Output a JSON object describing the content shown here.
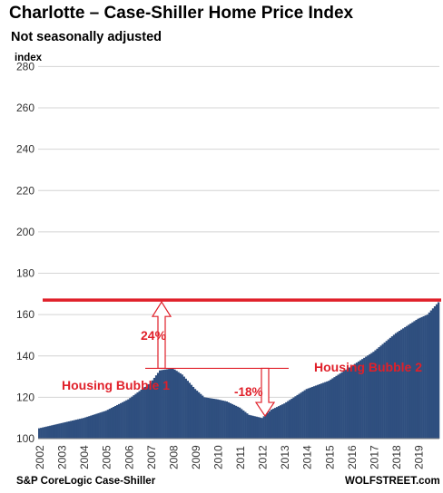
{
  "title": "Charlotte – Case-Shiller Home Price Index",
  "subtitle": "Not seasonally adjusted",
  "source": "S&P CoreLogic Case-Shiller",
  "brand": "WOLFSTREET.com",
  "colors": {
    "bars": "#2f4f7f",
    "reference_line": "#e0202a",
    "annotation_text": "#e0202a"
  },
  "chart_data": {
    "type": "bar",
    "ylabel": "index",
    "ylim": [
      100,
      285
    ],
    "yticks": [
      100,
      120,
      140,
      160,
      180,
      200,
      220,
      240,
      260,
      280
    ],
    "x_tick_labels": [
      "2002",
      "2003",
      "2004",
      "2005",
      "2006",
      "2007",
      "2008",
      "2009",
      "2010",
      "2011",
      "2012",
      "2013",
      "2014",
      "2015",
      "2016",
      "2017",
      "2018",
      "2019"
    ],
    "grid": true,
    "frequency": "monthly",
    "x_start": "2002-01",
    "x_end": "2019-12",
    "annual_path": [
      [
        "2002-01",
        105
      ],
      [
        "2003-01",
        107.5
      ],
      [
        "2004-01",
        110
      ],
      [
        "2005-01",
        113.5
      ],
      [
        "2006-01",
        119
      ],
      [
        "2007-01",
        127
      ],
      [
        "2007-06",
        133
      ],
      [
        "2008-01",
        134
      ],
      [
        "2008-06",
        131
      ],
      [
        "2009-01",
        124
      ],
      [
        "2009-06",
        120
      ],
      [
        "2010-01",
        119
      ],
      [
        "2010-06",
        118
      ],
      [
        "2011-01",
        115
      ],
      [
        "2011-06",
        111.5
      ],
      [
        "2012-01",
        110
      ],
      [
        "2012-06",
        114
      ],
      [
        "2013-01",
        117
      ],
      [
        "2014-01",
        124
      ],
      [
        "2015-01",
        128
      ],
      [
        "2016-01",
        135
      ],
      [
        "2017-01",
        142
      ],
      [
        "2018-01",
        151
      ],
      [
        "2019-01",
        158
      ],
      [
        "2019-06",
        160
      ],
      [
        "2019-12",
        166
      ]
    ],
    "reference_line": {
      "value": 167,
      "color": "#e0202a"
    },
    "annotations": [
      {
        "text": "Housing Bubble 1"
      },
      {
        "text": "Housing Bubble 2"
      },
      {
        "text": "24%"
      },
      {
        "text": "-18%"
      }
    ]
  }
}
